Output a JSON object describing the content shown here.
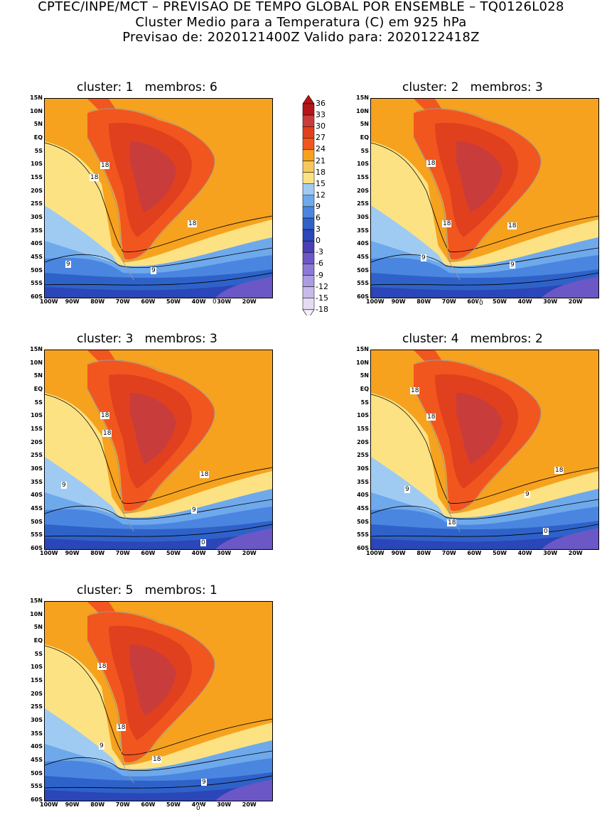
{
  "header": {
    "line1": "CPTEC/INPE/MCT – PREVISAO DE TEMPO GLOBAL POR ENSEMBLE – TQ0126L028",
    "line2": "Cluster Medio para a Temperatura (C) em 925 hPa",
    "line3": "Previsao de: 2020121400Z   Valido para: 2020122418Z"
  },
  "panels": [
    {
      "title": "cluster: 1   membros: 6"
    },
    {
      "title": "cluster: 2   membros: 3"
    },
    {
      "title": "cluster: 3   membros: 3"
    },
    {
      "title": "cluster: 4   membros: 2"
    },
    {
      "title": "cluster: 5   membros: 1"
    }
  ],
  "lat_labels": [
    "15N",
    "10N",
    "5N",
    "EQ",
    "5S",
    "10S",
    "15S",
    "20S",
    "25S",
    "30S",
    "35S",
    "40S",
    "45S",
    "50S",
    "55S",
    "60S"
  ],
  "lon_labels": [
    "100W",
    "90W",
    "80W",
    "70W",
    "60W",
    "50W",
    "40W",
    "30W",
    "20W"
  ],
  "colorbar": {
    "levels": [
      "36",
      "33",
      "30",
      "27",
      "24",
      "21",
      "18",
      "15",
      "12",
      "9",
      "6",
      "3",
      "0",
      "-3",
      "-6",
      "-9",
      "-12",
      "-15",
      "-18"
    ],
    "colors": [
      "#b51518",
      "#c93c3c",
      "#e0401e",
      "#f2561f",
      "#f6a21e",
      "#f6c85a",
      "#fde283",
      "#9fcbf3",
      "#6ea9ec",
      "#4a86e0",
      "#2f62c9",
      "#2a46b8",
      "#4a3db6",
      "#6b57c5",
      "#8d79d6",
      "#ab9ce2",
      "#c8bbeb",
      "#e4dbf5"
    ]
  },
  "contour_labels": {
    "p1": [
      "18",
      "18",
      "18",
      "9",
      "9",
      "0"
    ],
    "p2": [
      "18",
      "18",
      "18",
      "9",
      "9",
      "0"
    ],
    "p3": [
      "18",
      "18",
      "18",
      "9",
      "9",
      "0"
    ],
    "p4": [
      "18",
      "18",
      "18",
      "9",
      "18",
      "9",
      "0"
    ],
    "p5": [
      "18",
      "18",
      "18",
      "9",
      "9",
      "0"
    ]
  }
}
